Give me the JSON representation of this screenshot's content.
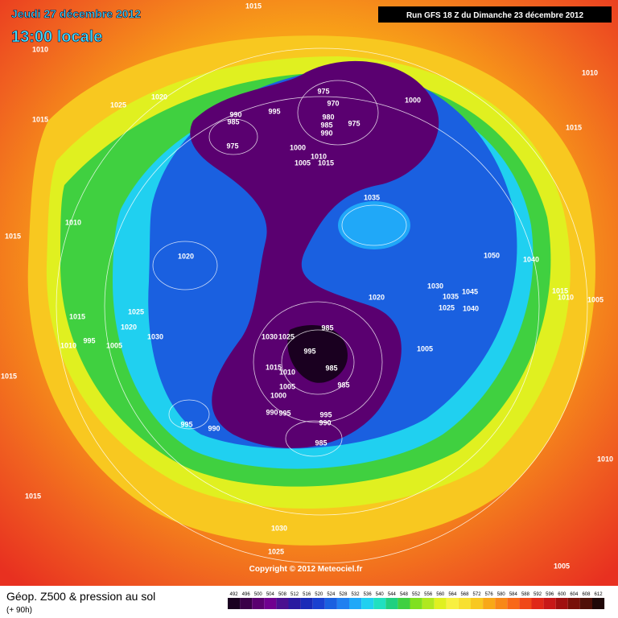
{
  "header": {
    "date": "Jeudi 27 décembre 2012",
    "time": "13:00 locale",
    "run": "Run GFS 18 Z du Dimanche 23 décembre 2012"
  },
  "copyright": "Copyright © 2012 Meteociel.fr",
  "footer": {
    "title": "Géop. Z500 & pression au sol",
    "lead": "(+ 90h)"
  },
  "scale": {
    "values": [
      492,
      496,
      500,
      504,
      508,
      512,
      516,
      520,
      524,
      528,
      532,
      536,
      540,
      544,
      548,
      552,
      556,
      560,
      564,
      568,
      572,
      576,
      580,
      584,
      588,
      592,
      596,
      600,
      604,
      608,
      612
    ],
    "colors": [
      "#1a0020",
      "#3a0048",
      "#5a0070",
      "#700090",
      "#4a1090",
      "#2a1aa0",
      "#1a2ab8",
      "#1a40d0",
      "#1a60e0",
      "#2080f0",
      "#20a8f8",
      "#20d0f0",
      "#20e0c0",
      "#20d080",
      "#40d040",
      "#80e020",
      "#b0e820",
      "#e0f020",
      "#f8f040",
      "#f8e030",
      "#f8c820",
      "#f8a818",
      "#f88818",
      "#f86818",
      "#f04818",
      "#e02818",
      "#c81818",
      "#a01010",
      "#781008",
      "#501008",
      "#200808"
    ]
  },
  "isobars": [
    1015,
    1010,
    1025,
    1020,
    1015,
    990,
    985,
    975,
    995,
    975,
    970,
    980,
    985,
    990,
    975,
    1000,
    1000,
    1010,
    1005,
    1015,
    1010,
    1015,
    1035,
    1010,
    1015,
    1020,
    1050,
    1040,
    1015,
    1010,
    1005,
    1020,
    1030,
    1035,
    1045,
    1025,
    1040,
    1025,
    1015,
    1020,
    1030,
    985,
    1030,
    1025,
    995,
    1010,
    995,
    1005,
    1005,
    1015,
    1010,
    985,
    1005,
    985,
    1000,
    990,
    995,
    995,
    990,
    985,
    995,
    990,
    1015,
    1015,
    1010,
    1030,
    1025,
    1005
  ]
}
